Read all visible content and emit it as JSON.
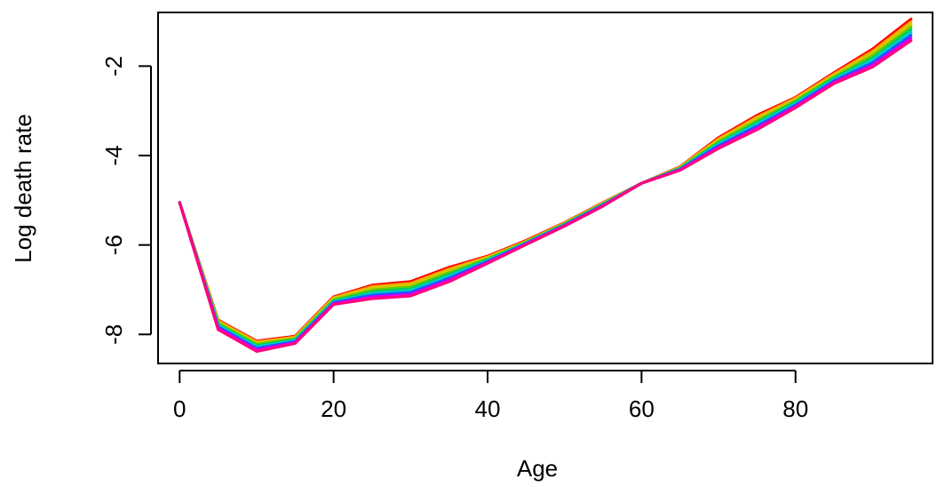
{
  "chart_data": {
    "type": "line",
    "title": "",
    "xlabel": "Age",
    "ylabel": "Log death rate",
    "xlim": [
      -2.8,
      97.8
    ],
    "ylim": [
      -8.65,
      -0.8
    ],
    "x_ticks": [
      0,
      20,
      40,
      60,
      80
    ],
    "y_ticks": [
      -8,
      -6,
      -4,
      -2
    ],
    "x_tick_labels": [
      "0",
      "20",
      "40",
      "60",
      "80"
    ],
    "y_tick_labels": [
      "-8",
      "-6",
      "-4",
      "-2"
    ],
    "grid": false,
    "legend": "none",
    "x": [
      0,
      5,
      10,
      15,
      20,
      25,
      30,
      35,
      40,
      45,
      50,
      55,
      60,
      65,
      70,
      75,
      80,
      85,
      90,
      95
    ],
    "series": [
      {
        "color": "#FF0000",
        "values": [
          -5.05,
          -7.68,
          -8.15,
          -8.04,
          -7.16,
          -6.9,
          -6.82,
          -6.5,
          -6.25,
          -5.9,
          -5.5,
          -5.05,
          -4.62,
          -4.25,
          -3.6,
          -3.1,
          -2.7,
          -2.15,
          -1.62,
          -0.95
        ]
      },
      {
        "color": "#FFA500",
        "values": [
          -5.05,
          -7.7,
          -8.17,
          -8.06,
          -7.18,
          -6.93,
          -6.86,
          -6.54,
          -6.27,
          -5.92,
          -5.51,
          -5.06,
          -4.62,
          -4.26,
          -3.63,
          -3.14,
          -2.72,
          -2.18,
          -1.67,
          -1.01
        ]
      },
      {
        "color": "#CCCC00",
        "values": [
          -5.05,
          -7.72,
          -8.19,
          -8.08,
          -7.2,
          -6.97,
          -6.9,
          -6.58,
          -6.29,
          -5.93,
          -5.52,
          -5.07,
          -4.62,
          -4.27,
          -3.66,
          -3.18,
          -2.75,
          -2.21,
          -1.72,
          -1.07
        ]
      },
      {
        "color": "#66CC00",
        "values": [
          -5.05,
          -7.75,
          -8.22,
          -8.1,
          -7.23,
          -7.01,
          -6.94,
          -6.62,
          -6.31,
          -5.94,
          -5.53,
          -5.08,
          -4.62,
          -4.28,
          -3.69,
          -3.22,
          -2.78,
          -2.24,
          -1.77,
          -1.13
        ]
      },
      {
        "color": "#00CC66",
        "values": [
          -5.05,
          -7.78,
          -8.25,
          -8.12,
          -7.25,
          -7.05,
          -6.98,
          -6.66,
          -6.33,
          -5.95,
          -5.54,
          -5.09,
          -4.62,
          -4.29,
          -3.72,
          -3.26,
          -2.81,
          -2.27,
          -1.82,
          -1.19
        ]
      },
      {
        "color": "#00CCCC",
        "values": [
          -5.05,
          -7.8,
          -8.28,
          -8.14,
          -7.27,
          -7.09,
          -7.02,
          -6.7,
          -6.35,
          -5.96,
          -5.55,
          -5.1,
          -4.62,
          -4.3,
          -3.75,
          -3.3,
          -2.84,
          -2.3,
          -1.87,
          -1.25
        ]
      },
      {
        "color": "#0066FF",
        "values": [
          -5.05,
          -7.83,
          -8.31,
          -8.16,
          -7.29,
          -7.12,
          -7.06,
          -6.74,
          -6.37,
          -5.97,
          -5.56,
          -5.11,
          -4.62,
          -4.31,
          -3.78,
          -3.34,
          -2.87,
          -2.33,
          -1.92,
          -1.31
        ]
      },
      {
        "color": "#CC00FF",
        "values": [
          -5.05,
          -7.86,
          -8.34,
          -8.18,
          -7.31,
          -7.16,
          -7.1,
          -6.78,
          -6.39,
          -5.98,
          -5.57,
          -5.12,
          -4.62,
          -4.32,
          -3.81,
          -3.38,
          -2.9,
          -2.36,
          -1.97,
          -1.37
        ]
      },
      {
        "color": "#FF0080",
        "values": [
          -5.05,
          -7.89,
          -8.38,
          -8.2,
          -7.33,
          -7.2,
          -7.14,
          -6.82,
          -6.41,
          -5.99,
          -5.58,
          -5.13,
          -4.62,
          -4.33,
          -3.84,
          -3.42,
          -2.93,
          -2.39,
          -2.02,
          -1.43
        ]
      }
    ]
  }
}
